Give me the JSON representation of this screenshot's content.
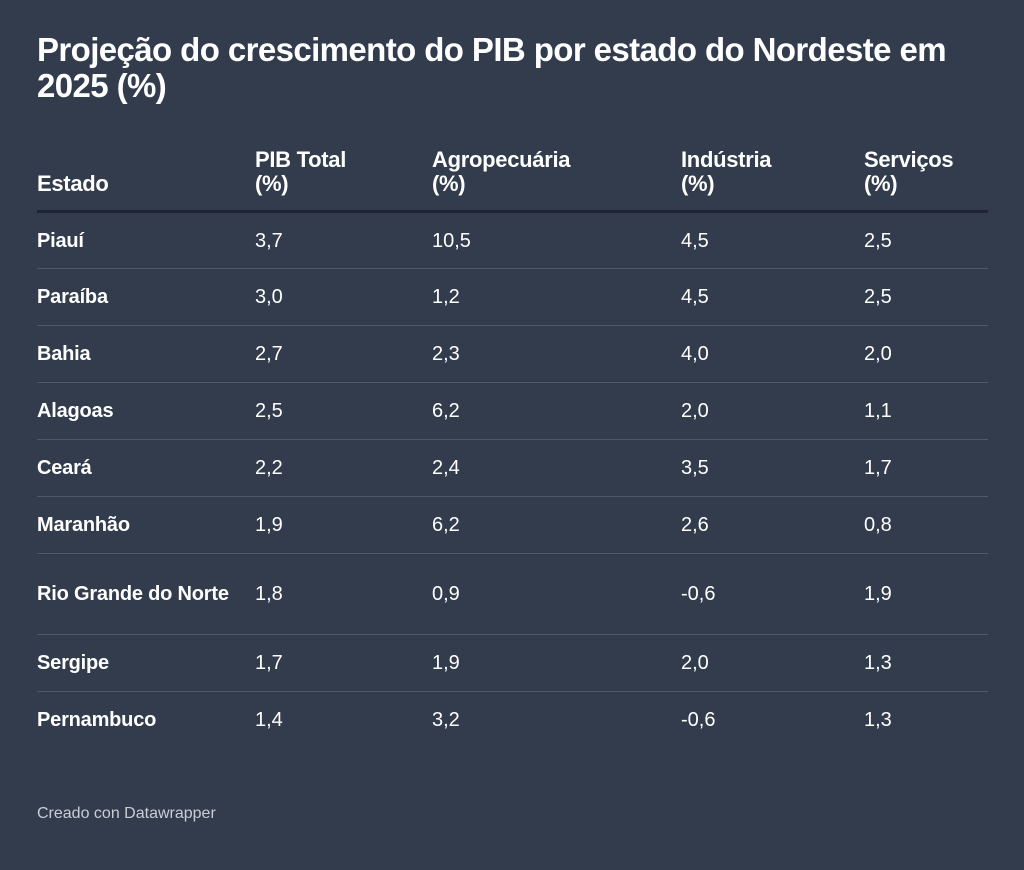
{
  "chart_data": {
    "type": "table",
    "title": "Projeção do crescimento do PIB por estado do Nordeste em 2025 (%)",
    "columns": [
      {
        "key": "estado",
        "label_lines": [
          "Estado"
        ]
      },
      {
        "key": "pib_total",
        "label_lines": [
          "PIB Total",
          "(%)"
        ]
      },
      {
        "key": "agro",
        "label_lines": [
          "Agropecuária",
          "(%)"
        ]
      },
      {
        "key": "industria",
        "label_lines": [
          "Indústria",
          "(%)"
        ]
      },
      {
        "key": "servicos",
        "label_lines": [
          "Serviços",
          "(%)"
        ]
      }
    ],
    "rows": [
      {
        "estado": "Piauí",
        "pib_total": "3,7",
        "agro": "10,5",
        "industria": "4,5",
        "servicos": "2,5"
      },
      {
        "estado": "Paraíba",
        "pib_total": "3,0",
        "agro": "1,2",
        "industria": "4,5",
        "servicos": "2,5"
      },
      {
        "estado": "Bahia",
        "pib_total": "2,7",
        "agro": "2,3",
        "industria": "4,0",
        "servicos": "2,0"
      },
      {
        "estado": "Alagoas",
        "pib_total": "2,5",
        "agro": "6,2",
        "industria": "2,0",
        "servicos": "1,1"
      },
      {
        "estado": "Ceará",
        "pib_total": "2,2",
        "agro": "2,4",
        "industria": "3,5",
        "servicos": "1,7"
      },
      {
        "estado": "Maranhão",
        "pib_total": "1,9",
        "agro": "6,2",
        "industria": "2,6",
        "servicos": "0,8"
      },
      {
        "estado": "Rio Grande do Norte",
        "pib_total": "1,8",
        "agro": "0,9",
        "industria": "-0,6",
        "servicos": "1,9"
      },
      {
        "estado": "Sergipe",
        "pib_total": "1,7",
        "agro": "1,9",
        "industria": "2,0",
        "servicos": "1,3"
      },
      {
        "estado": "Pernambuco",
        "pib_total": "1,4",
        "agro": "3,2",
        "industria": "-0,6",
        "servicos": "1,3"
      }
    ]
  },
  "footer": {
    "credit": "Creado con Datawrapper"
  }
}
